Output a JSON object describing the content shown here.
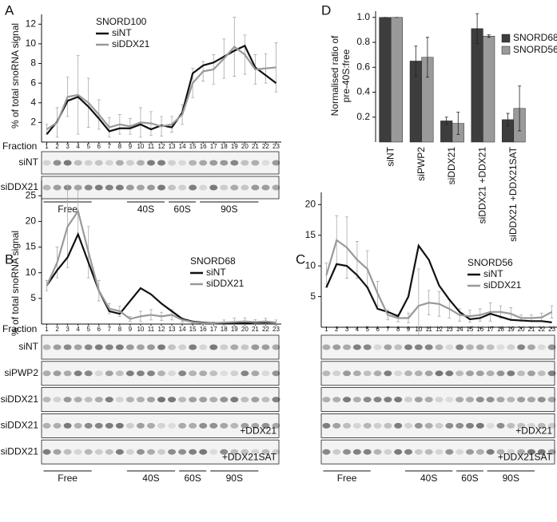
{
  "chart_data": [
    {
      "type": "line",
      "label": "A",
      "title": "SNORD100",
      "ylabel": "% of total snoRNA signal",
      "xlabel": "Fraction",
      "x": [
        1,
        2,
        3,
        4,
        5,
        6,
        7,
        8,
        9,
        10,
        11,
        12,
        13,
        14,
        15,
        16,
        17,
        18,
        19,
        20,
        21,
        22,
        23
      ],
      "xlim": [
        0.5,
        23.5
      ],
      "xticks": [
        1,
        2,
        3,
        4,
        5,
        6,
        7,
        8,
        9,
        10,
        11,
        12,
        13,
        14,
        15,
        16,
        17,
        18,
        19,
        20,
        21,
        22,
        23
      ],
      "ylim": [
        0,
        13
      ],
      "yticks": [
        2,
        4,
        6,
        8,
        10,
        12
      ],
      "series": [
        {
          "name": "siNT",
          "color": "#111111",
          "values": [
            0.8,
            2.1,
            4.2,
            4.6,
            3.6,
            2.4,
            1.1,
            1.4,
            1.4,
            1.8,
            1.3,
            1.7,
            1.5,
            3.0,
            7.0,
            7.8,
            8.1,
            8.7,
            9.3,
            9.8,
            7.6,
            6.8,
            6.0
          ]
        },
        {
          "name": "siDDX21",
          "color": "#999999",
          "values": [
            1.3,
            2.0,
            4.6,
            4.8,
            4.0,
            2.8,
            1.5,
            1.8,
            1.6,
            2.0,
            1.9,
            1.6,
            1.8,
            2.8,
            6.0,
            7.2,
            7.4,
            8.5,
            9.7,
            8.9,
            7.4,
            7.5,
            7.6
          ],
          "errors": [
            0.5,
            1.5,
            2,
            4,
            2.5,
            1.5,
            1,
            1,
            0.8,
            1.5,
            1.2,
            1,
            0.8,
            1,
            1.5,
            1,
            1.5,
            2,
            3,
            2,
            1.5,
            1.5,
            2.5
          ]
        }
      ],
      "blot": {
        "rows": [
          {
            "label": "siNT"
          },
          {
            "label": "siDDX21"
          }
        ],
        "groups": [
          "Free",
          "40S",
          "60S",
          "90S"
        ]
      }
    },
    {
      "type": "line",
      "label": "B",
      "title": "SNORD68",
      "ylabel": "% of total snoRNA signal",
      "xlabel": "Fraction",
      "x": [
        1,
        2,
        3,
        4,
        5,
        6,
        7,
        8,
        9,
        10,
        11,
        12,
        13,
        14,
        15,
        16,
        17,
        18,
        19,
        20,
        21,
        22,
        23
      ],
      "xlim": [
        0.5,
        23.5
      ],
      "xticks": [
        1,
        2,
        3,
        4,
        5,
        6,
        7,
        8,
        9,
        10,
        11,
        12,
        13,
        14,
        15,
        16,
        17,
        18,
        19,
        20,
        21,
        22,
        23
      ],
      "ylim": [
        0,
        28
      ],
      "yticks": [
        5,
        10,
        15,
        20,
        25
      ],
      "series": [
        {
          "name": "siNT",
          "color": "#111111",
          "values": [
            7.5,
            10.5,
            13,
            17.5,
            12,
            6.5,
            2.5,
            2,
            4.5,
            7,
            5.8,
            4,
            2.5,
            1,
            0.5,
            0.3,
            0.2,
            0.2,
            0.2,
            0.2,
            0.3,
            0.3,
            0.3
          ]
        },
        {
          "name": "siDDX21",
          "color": "#999999",
          "values": [
            7.5,
            12,
            19,
            22,
            14,
            6.5,
            3,
            2.5,
            1,
            1.5,
            1.8,
            1.5,
            1.8,
            0.8,
            0.4,
            0.2,
            0.2,
            0.3,
            0.4,
            0.5,
            0.4,
            0.5,
            0.3
          ],
          "errors": [
            1,
            3,
            8,
            5,
            5,
            2,
            1,
            1,
            0.5,
            1,
            1,
            0.8,
            1,
            0.4,
            0.2,
            0.2,
            0.2,
            0.5,
            0.8,
            0.7,
            0.5,
            0.6,
            0.5
          ]
        }
      ],
      "blot": {
        "rows": [
          {
            "label": "siNT"
          },
          {
            "label": "siPWP2"
          },
          {
            "label": "siDDX21"
          },
          {
            "label": "siDDX21",
            "note": "+DDX21"
          },
          {
            "label": "siDDX21",
            "note": "+DDX21SAT"
          }
        ],
        "groups": [
          "Free",
          "40S",
          "60S",
          "90S"
        ]
      }
    },
    {
      "type": "line",
      "label": "C",
      "title": "SNORD56",
      "x": [
        1,
        2,
        3,
        4,
        5,
        6,
        7,
        8,
        9,
        10,
        11,
        12,
        13,
        14,
        15,
        16,
        17,
        18,
        19,
        20,
        21,
        22,
        23
      ],
      "xlim": [
        0.5,
        23.5
      ],
      "xticks": [
        1,
        2,
        3,
        4,
        5,
        6,
        7,
        8,
        9,
        10,
        11,
        12,
        13,
        14,
        15,
        16,
        17,
        18,
        19,
        20,
        21,
        22,
        23
      ],
      "ylim": [
        0,
        22
      ],
      "yticks": [
        5,
        10,
        15,
        20
      ],
      "series": [
        {
          "name": "siNT",
          "color": "#111111",
          "values": [
            6.5,
            10.3,
            10,
            8.5,
            6.5,
            3,
            2.5,
            1.8,
            5,
            13.3,
            11,
            6.8,
            4.5,
            2.5,
            1.3,
            1.5,
            2.2,
            1.7,
            1.2,
            1.1,
            1,
            1,
            0.8
          ]
        },
        {
          "name": "siDDX21",
          "color": "#999999",
          "values": [
            8.5,
            14.2,
            13,
            11,
            9.5,
            5.5,
            2,
            1.5,
            1.5,
            3.5,
            4,
            3.8,
            3,
            2,
            1.8,
            2,
            2.5,
            2.5,
            2.2,
            1.5,
            1.5,
            1.6,
            2.5
          ],
          "errors": [
            2,
            4,
            5,
            3,
            3,
            2,
            0.8,
            0.6,
            0.8,
            6,
            2,
            2,
            1.5,
            1,
            1,
            1,
            1.5,
            1,
            1,
            0.5,
            0.5,
            0.7,
            1
          ]
        }
      ],
      "blot": {
        "rows": [
          {},
          {},
          {},
          {
            "note": "+DDX21"
          },
          {
            "note": "+DDX21SAT"
          }
        ],
        "groups": [
          "Free",
          "40S",
          "60S",
          "90S"
        ]
      }
    },
    {
      "type": "bar",
      "label": "D",
      "ylabel": [
        "Normalised ratio of",
        "pre-40S:free"
      ],
      "categories": [
        "siNT",
        "siPWP2",
        "siDDX21",
        "siDDX21 +DDX21",
        "siDDX21 +DDX21SAT"
      ],
      "ylim": [
        0,
        1.05
      ],
      "yticks": [
        0.2,
        0.4,
        0.6,
        0.8,
        {
          "value": 1,
          "label": "1.0"
        }
      ],
      "series": [
        {
          "name": "SNORD68",
          "color": "#3d3d3d",
          "values": [
            1.0,
            0.65,
            0.17,
            0.91,
            0.18
          ],
          "errors": [
            0,
            0.12,
            0.03,
            0.12,
            0.05
          ]
        },
        {
          "name": "SNORD56",
          "color": "#9a9a9a",
          "values": [
            1.0,
            0.68,
            0.15,
            0.85,
            0.27
          ],
          "errors": [
            0,
            0.16,
            0.09,
            0.01,
            0.18
          ]
        }
      ]
    }
  ]
}
